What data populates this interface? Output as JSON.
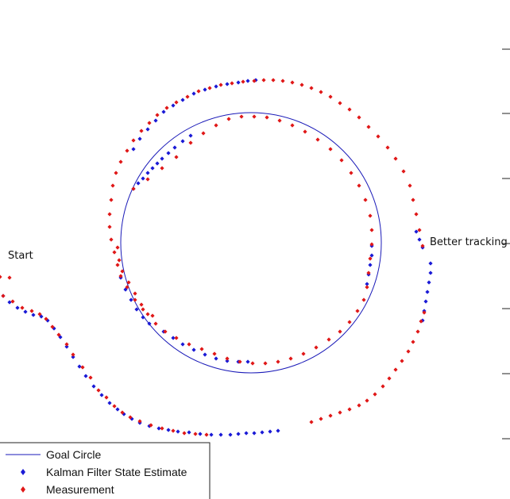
{
  "chart_data": {
    "type": "scatter",
    "title": "",
    "xlabel": "",
    "ylabel": "",
    "grid": false,
    "legend_position": "bottom-left",
    "annotations": [
      {
        "id": "start",
        "text": "Start"
      },
      {
        "id": "better",
        "text": "Better tracking"
      }
    ],
    "goal_circle": {
      "cx": 316,
      "cy": 306,
      "r": 164
    },
    "series": [
      {
        "name": "Goal Circle",
        "marker": "line",
        "color": "#1a1ab8"
      },
      {
        "name": "Kalman Filter State Estimate",
        "marker": "diamond",
        "color": "#1a1ad6",
        "points": [
          [
            4,
            373
          ],
          [
            12,
            381
          ],
          [
            22,
            388
          ],
          [
            32,
            393
          ],
          [
            42,
            397
          ],
          [
            52,
            399
          ],
          [
            60,
            404
          ],
          [
            68,
            414
          ],
          [
            76,
            425
          ],
          [
            84,
            437
          ],
          [
            92,
            450
          ],
          [
            100,
            462
          ],
          [
            108,
            474
          ],
          [
            118,
            487
          ],
          [
            128,
            498
          ],
          [
            138,
            508
          ],
          [
            148,
            516
          ],
          [
            156,
            522
          ],
          [
            166,
            528
          ],
          [
            176,
            533
          ],
          [
            188,
            537
          ],
          [
            200,
            540
          ],
          [
            212,
            542
          ],
          [
            224,
            544
          ],
          [
            238,
            545
          ],
          [
            252,
            547
          ],
          [
            266,
            548
          ],
          [
            278,
            548
          ],
          [
            290,
            548
          ],
          [
            300,
            547
          ],
          [
            310,
            546
          ],
          [
            320,
            546
          ],
          [
            330,
            545
          ],
          [
            340,
            544
          ],
          [
            350,
            543
          ],
          [
            168,
            238
          ],
          [
            174,
            231
          ],
          [
            180,
            225
          ],
          [
            186,
            218
          ],
          [
            192,
            212
          ],
          [
            198,
            206
          ],
          [
            204,
            200
          ],
          [
            212,
            193
          ],
          [
            220,
            186
          ],
          [
            230,
            178
          ],
          [
            240,
            171
          ],
          [
            168,
            188
          ],
          [
            176,
            175
          ],
          [
            186,
            163
          ],
          [
            196,
            152
          ],
          [
            206,
            141
          ],
          [
            218,
            133
          ],
          [
            230,
            126
          ],
          [
            244,
            118
          ],
          [
            258,
            113
          ],
          [
            272,
            109
          ],
          [
            286,
            106
          ],
          [
            300,
            104
          ],
          [
            312,
            102
          ],
          [
            322,
            101
          ],
          [
            468,
            310
          ],
          [
            468,
            322
          ],
          [
            466,
            334
          ],
          [
            464,
            346
          ],
          [
            462,
            358
          ],
          [
            152,
            350
          ],
          [
            158,
            365
          ],
          [
            165,
            378
          ],
          [
            172,
            390
          ],
          [
            180,
            400
          ],
          [
            188,
            408
          ],
          [
            206,
            418
          ],
          [
            218,
            426
          ],
          [
            230,
            434
          ],
          [
            244,
            441
          ],
          [
            258,
            447
          ],
          [
            272,
            452
          ],
          [
            286,
            455
          ],
          [
            300,
            456
          ],
          [
            312,
            456
          ],
          [
            524,
            292
          ],
          [
            528,
            302
          ],
          [
            532,
            312
          ],
          [
            542,
            332
          ],
          [
            542,
            344
          ],
          [
            540,
            356
          ],
          [
            538,
            368
          ],
          [
            536,
            380
          ],
          [
            534,
            392
          ],
          [
            532,
            404
          ]
        ]
      },
      {
        "name": "Measurement",
        "marker": "diamond",
        "color": "#e01818",
        "points": [
          [
            0,
            349
          ],
          [
            12,
            350
          ],
          [
            4,
            373
          ],
          [
            16,
            380
          ],
          [
            28,
            388
          ],
          [
            40,
            392
          ],
          [
            50,
            396
          ],
          [
            58,
            402
          ],
          [
            66,
            412
          ],
          [
            74,
            422
          ],
          [
            84,
            434
          ],
          [
            92,
            447
          ],
          [
            104,
            463
          ],
          [
            114,
            476
          ],
          [
            124,
            492
          ],
          [
            134,
            501
          ],
          [
            144,
            512
          ],
          [
            154,
            520
          ],
          [
            164,
            526
          ],
          [
            176,
            531
          ],
          [
            190,
            536
          ],
          [
            204,
            540
          ],
          [
            218,
            543
          ],
          [
            232,
            546
          ],
          [
            246,
            547
          ],
          [
            260,
            548
          ],
          [
            392,
            532
          ],
          [
            404,
            528
          ],
          [
            416,
            524
          ],
          [
            428,
            520
          ],
          [
            440,
            516
          ],
          [
            452,
            511
          ],
          [
            462,
            505
          ],
          [
            472,
            497
          ],
          [
            482,
            487
          ],
          [
            490,
            477
          ],
          [
            498,
            466
          ],
          [
            506,
            455
          ],
          [
            514,
            443
          ],
          [
            520,
            431
          ],
          [
            526,
            418
          ],
          [
            530,
            405
          ],
          [
            534,
            394
          ],
          [
            138,
            270
          ],
          [
            138,
            286
          ],
          [
            140,
            302
          ],
          [
            144,
            318
          ],
          [
            148,
            334
          ],
          [
            152,
            348
          ],
          [
            160,
            362
          ],
          [
            170,
            378
          ],
          [
            180,
            390
          ],
          [
            192,
            398
          ],
          [
            140,
            252
          ],
          [
            142,
            234
          ],
          [
            146,
            218
          ],
          [
            152,
            204
          ],
          [
            160,
            190
          ],
          [
            168,
            177
          ],
          [
            178,
            165
          ],
          [
            188,
            155
          ],
          [
            198,
            145
          ],
          [
            210,
            136
          ],
          [
            222,
            129
          ],
          [
            236,
            122
          ],
          [
            250,
            115
          ],
          [
            264,
            111
          ],
          [
            278,
            107
          ],
          [
            292,
            105
          ],
          [
            306,
            103
          ],
          [
            320,
            102
          ],
          [
            332,
            101
          ],
          [
            344,
            101
          ],
          [
            356,
            102
          ],
          [
            368,
            104
          ],
          [
            380,
            107
          ],
          [
            392,
            111
          ],
          [
            404,
            116
          ],
          [
            416,
            122
          ],
          [
            428,
            130
          ],
          [
            440,
            138
          ],
          [
            452,
            148
          ],
          [
            464,
            160
          ],
          [
            476,
            172
          ],
          [
            488,
            186
          ],
          [
            498,
            200
          ],
          [
            508,
            216
          ],
          [
            516,
            234
          ],
          [
            520,
            252
          ],
          [
            524,
            270
          ],
          [
            528,
            290
          ],
          [
            532,
            310
          ],
          [
            168,
            238
          ],
          [
            186,
            226
          ],
          [
            204,
            212
          ],
          [
            222,
            198
          ],
          [
            240,
            180
          ],
          [
            256,
            168
          ],
          [
            272,
            158
          ],
          [
            288,
            150
          ],
          [
            304,
            147
          ],
          [
            320,
            147
          ],
          [
            336,
            148
          ],
          [
            352,
            152
          ],
          [
            368,
            158
          ],
          [
            384,
            166
          ],
          [
            400,
            176
          ],
          [
            416,
            188
          ],
          [
            430,
            202
          ],
          [
            442,
            218
          ],
          [
            452,
            234
          ],
          [
            460,
            252
          ],
          [
            466,
            272
          ],
          [
            468,
            290
          ],
          [
            468,
            308
          ],
          [
            466,
            326
          ],
          [
            464,
            344
          ],
          [
            462,
            362
          ],
          [
            458,
            378
          ],
          [
            450,
            392
          ],
          [
            440,
            406
          ],
          [
            428,
            418
          ],
          [
            414,
            428
          ],
          [
            398,
            438
          ],
          [
            382,
            446
          ],
          [
            366,
            452
          ],
          [
            350,
            456
          ],
          [
            334,
            458
          ],
          [
            318,
            458
          ],
          [
            302,
            456
          ],
          [
            286,
            452
          ],
          [
            270,
            446
          ],
          [
            254,
            440
          ],
          [
            238,
            434
          ],
          [
            222,
            426
          ],
          [
            208,
            418
          ],
          [
            196,
            408
          ],
          [
            186,
            396
          ],
          [
            178,
            384
          ],
          [
            170,
            370
          ],
          [
            162,
            356
          ],
          [
            154,
            342
          ],
          [
            150,
            328
          ],
          [
            148,
            312
          ]
        ]
      }
    ]
  }
}
